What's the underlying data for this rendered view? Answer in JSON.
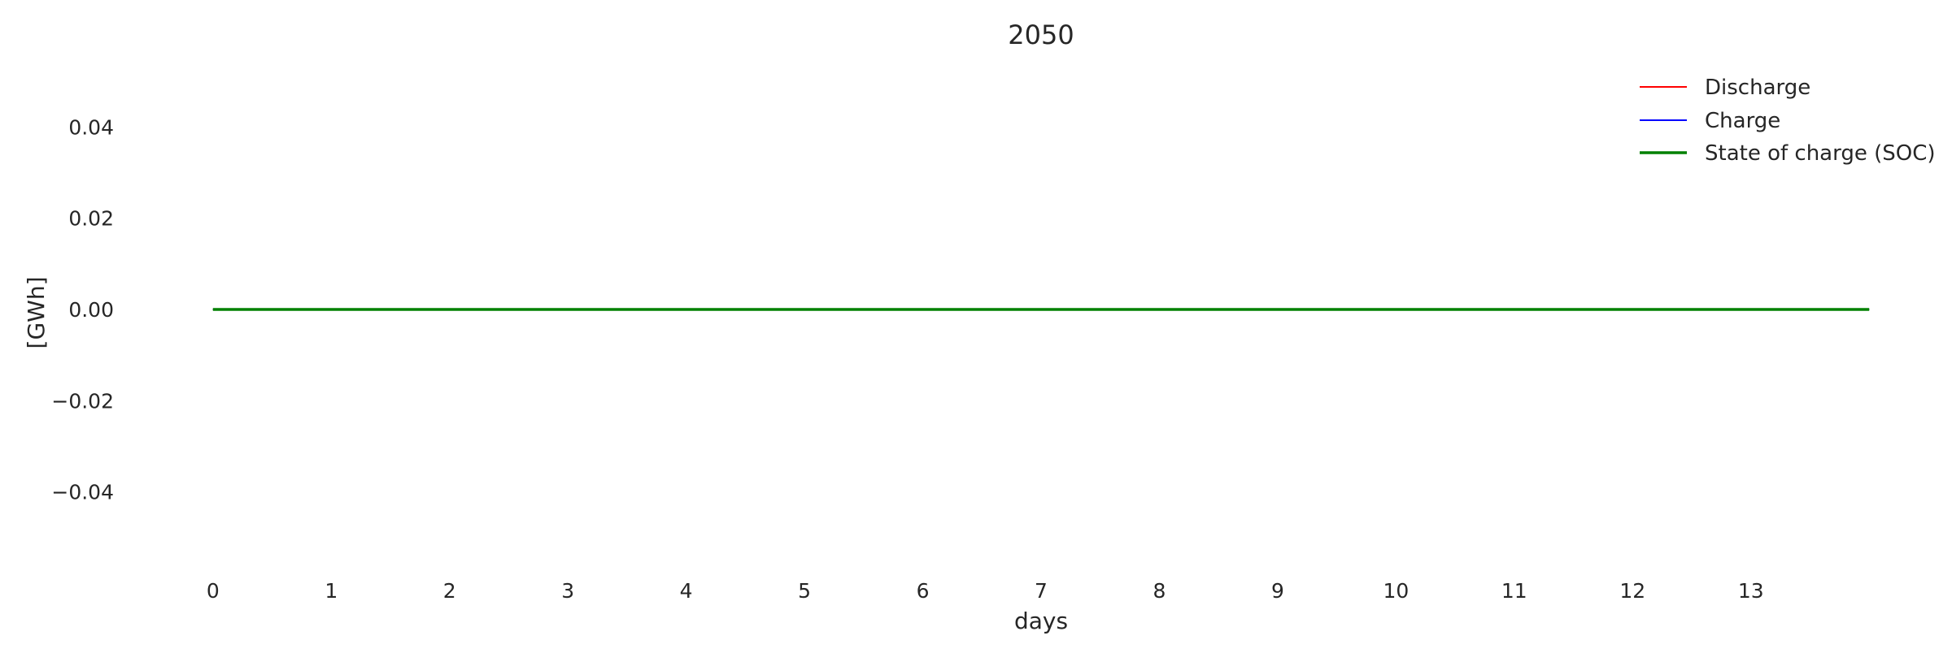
{
  "chart_data": {
    "type": "line",
    "title": "2050",
    "xlabel": "days",
    "ylabel": "[GWh]",
    "xlim": [
      -0.15,
      14.15
    ],
    "ylim": [
      -0.055,
      0.055
    ],
    "x_range": [
      0,
      14
    ],
    "xticks": [
      0,
      1,
      2,
      3,
      4,
      5,
      6,
      7,
      8,
      9,
      10,
      11,
      12,
      13
    ],
    "xtick_labels": [
      "0",
      "1",
      "2",
      "3",
      "4",
      "5",
      "6",
      "7",
      "8",
      "9",
      "10",
      "11",
      "12",
      "13"
    ],
    "yticks": [
      0.04,
      0.02,
      0.0,
      -0.02,
      -0.04
    ],
    "ytick_labels": [
      "0.04",
      "0.02",
      "0.00",
      "−0.02",
      "−0.04"
    ],
    "grid": false,
    "legend_position": "top-right",
    "series": [
      {
        "name": "Discharge",
        "color": "#ff0000",
        "x": [
          0,
          14
        ],
        "values": [
          0,
          0
        ]
      },
      {
        "name": "Charge",
        "color": "#0000ff",
        "x": [
          0,
          14
        ],
        "values": [
          0,
          0
        ]
      },
      {
        "name": "State of charge (SOC)",
        "color": "#008000",
        "x": [
          0,
          14
        ],
        "values": [
          0,
          0
        ]
      }
    ]
  }
}
